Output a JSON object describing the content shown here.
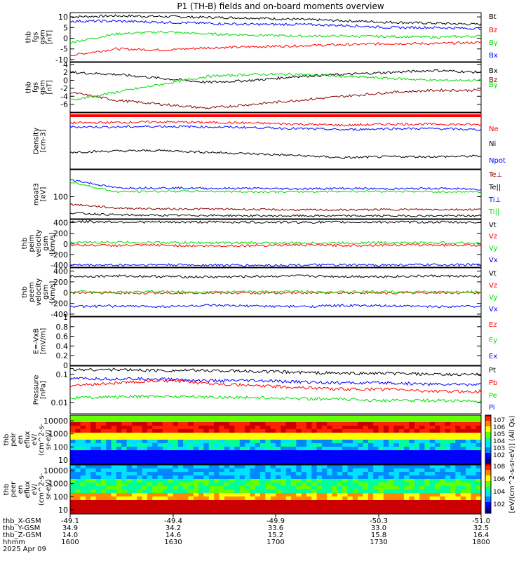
{
  "title": "P1 (TH-B) fields and on-board moments overview",
  "colors": {
    "black": "#000000",
    "red": "#ff0000",
    "green": "#00dd00",
    "blue": "#0000ff",
    "darkred": "#8b0000"
  },
  "chart_data": {
    "type": "line",
    "x_range": [
      "1600",
      "1800"
    ],
    "panels": [
      {
        "key": "fgs",
        "ylabel": [
          "thb",
          "fgs",
          "gsm",
          "[nT]"
        ],
        "ylim": [
          -11,
          12
        ],
        "yticks": [
          10,
          5,
          0,
          -5,
          -10
        ],
        "series": [
          {
            "name": "Bt",
            "color": "#000000",
            "values": [
              10,
              10.5,
              10.2,
              9.8,
              9.5,
              8.8,
              8.2,
              7.5,
              7,
              6.5
            ]
          },
          {
            "name": "Bz",
            "color": "#ff0000",
            "values": [
              -8,
              -5,
              -5.5,
              -4.5,
              -4,
              -3.5,
              -3,
              -2.5,
              -2.5,
              -2
            ]
          },
          {
            "name": "By",
            "color": "#00dd00",
            "values": [
              -2,
              2,
              3,
              2,
              1.5,
              1,
              1,
              0.8,
              0.5,
              1
            ]
          },
          {
            "name": "Bx",
            "color": "#0000ff",
            "values": [
              8,
              8,
              7.5,
              7,
              6.5,
              6.5,
              6,
              5,
              5,
              4.5
            ]
          }
        ]
      },
      {
        "key": "fgs_sm",
        "ylabel": [
          "thb",
          "fgs",
          "gsm",
          "[nT]"
        ],
        "ylim": [
          -8,
          4.5
        ],
        "yticks": [
          4,
          2,
          0,
          -2,
          -4,
          -6
        ],
        "series": [
          {
            "name": "Bx",
            "color": "#000000",
            "values": [
              2,
              1.5,
              0.5,
              -0.5,
              0,
              1,
              1.5,
              2,
              2.5,
              2
            ]
          },
          {
            "name": "Bz",
            "color": "#8b0000",
            "values": [
              -3,
              -5,
              -6,
              -7,
              -6,
              -5,
              -4,
              -3,
              -2.5,
              -2.5
            ]
          },
          {
            "name": "By",
            "color": "#00dd00",
            "values": [
              -5,
              -3,
              -1,
              1,
              1.5,
              1.5,
              1,
              0.5,
              0,
              0
            ]
          }
        ]
      },
      {
        "key": "density",
        "ylabel": [
          "Density",
          "[cm-3]"
        ],
        "ylim": [
          0,
          1
        ],
        "yticks": [],
        "series": [
          {
            "name": "Ne",
            "color": "#ff0000",
            "values": [
              0.82,
              0.83,
              0.84,
              0.83,
              0.82,
              0.8,
              0.78,
              0.8,
              0.8,
              0.79
            ]
          },
          {
            "name": "Ni",
            "color": "#000000",
            "values": [
              0.3,
              0.32,
              0.33,
              0.3,
              0.27,
              0.24,
              0.2,
              0.22,
              0.22,
              0.23
            ]
          },
          {
            "name": "Npot",
            "color": "#0000ff",
            "values": [
              0.75,
              0.75,
              0.76,
              0.75,
              0.74,
              0.72,
              0.7,
              0.72,
              0.72,
              0.7
            ]
          }
        ]
      },
      {
        "key": "temp",
        "ylabel": [
          "moat3",
          "[eV]"
        ],
        "ylim": [
          0,
          1
        ],
        "yticks": [
          100
        ],
        "series": [
          {
            "name": "Te⊥",
            "color": "#8b0000",
            "values": [
              0.3,
              0.22,
              0.2,
              0.2,
              0.19,
              0.18,
              0.18,
              0.19,
              0.19,
              0.19
            ]
          },
          {
            "name": "Te||",
            "color": "#000000",
            "values": [
              0.12,
              0.08,
              0.07,
              0.07,
              0.06,
              0.06,
              0.06,
              0.06,
              0.06,
              0.06
            ]
          },
          {
            "name": "Ti⊥",
            "color": "#0000ff",
            "values": [
              0.8,
              0.63,
              0.63,
              0.62,
              0.62,
              0.61,
              0.62,
              0.61,
              0.62,
              0.6
            ]
          },
          {
            "name": "Ti||",
            "color": "#00dd00",
            "values": [
              0.75,
              0.55,
              0.56,
              0.56,
              0.55,
              0.55,
              0.56,
              0.56,
              0.55,
              0.55
            ]
          }
        ]
      },
      {
        "key": "peim",
        "ylabel": [
          "thb",
          "peim",
          "velocity",
          "gsm",
          "[km/s]"
        ],
        "ylim": [
          -440,
          460
        ],
        "yticks": [
          400,
          200,
          0,
          -200,
          -400
        ],
        "series": [
          {
            "name": "Vt",
            "color": "#000000",
            "values": [
              420,
              415,
              410,
              412,
              410,
              408,
              410,
              412,
              410,
              405
            ]
          },
          {
            "name": "Vz",
            "color": "#ff0000",
            "values": [
              -20,
              -30,
              -25,
              -40,
              -30,
              -20,
              -30,
              -20,
              -20,
              -25
            ]
          },
          {
            "name": "Vy",
            "color": "#00dd00",
            "values": [
              20,
              30,
              25,
              20,
              20,
              15,
              20,
              25,
              20,
              15
            ]
          },
          {
            "name": "Vx",
            "color": "#0000ff",
            "values": [
              -400,
              -400,
              -395,
              -400,
              -405,
              -400,
              -400,
              -398,
              -395,
              -395
            ]
          }
        ]
      },
      {
        "key": "peem",
        "ylabel": [
          "thb",
          "peem",
          "velocity",
          "gsm",
          "[km/s]"
        ],
        "ylim": [
          -440,
          460
        ],
        "yticks": [
          400,
          200,
          0,
          -200,
          -400
        ],
        "series": [
          {
            "name": "Vt",
            "color": "#000000",
            "values": [
              300,
              310,
              300,
              290,
              300,
              310,
              300,
              300,
              310,
              300
            ]
          },
          {
            "name": "Vz",
            "color": "#ff0000",
            "values": [
              0,
              -10,
              -5,
              0,
              -10,
              -5,
              0,
              -10,
              0,
              -5
            ]
          },
          {
            "name": "Vy",
            "color": "#00dd00",
            "values": [
              20,
              10,
              20,
              10,
              15,
              20,
              10,
              20,
              10,
              15
            ]
          },
          {
            "name": "Vx",
            "color": "#0000ff",
            "values": [
              -260,
              -250,
              -260,
              -240,
              -250,
              -260,
              -240,
              -250,
              -260,
              -250
            ]
          }
        ]
      },
      {
        "key": "efield",
        "ylabel": [
          "E=-VxB",
          "[mV/m]"
        ],
        "ylim": [
          0,
          1
        ],
        "yticks": [
          1.0,
          0.8,
          0.6,
          0.4,
          0.2,
          0.0
        ],
        "series": [
          {
            "name": "Ez",
            "color": "#ff0000",
            "values": []
          },
          {
            "name": "Ey",
            "color": "#00dd00",
            "values": []
          },
          {
            "name": "Ex",
            "color": "#0000ff",
            "values": []
          }
        ]
      },
      {
        "key": "pressure",
        "ylabel": [
          "Pressure",
          "[nPa]"
        ],
        "ylim": [
          0.004,
          0.2
        ],
        "yticks": [
          0.1,
          0.01
        ],
        "series": [
          {
            "name": "Pt",
            "color": "#000000",
            "values": [
              0.15,
              0.15,
              0.14,
              0.14,
              0.13,
              0.12,
              0.11,
              0.11,
              0.1,
              0.1
            ]
          },
          {
            "name": "Pb",
            "color": "#ff0000",
            "values": [
              0.04,
              0.05,
              0.06,
              0.05,
              0.04,
              0.035,
              0.03,
              0.03,
              0.025,
              0.025
            ]
          },
          {
            "name": "Pe",
            "color": "#00dd00",
            "values": [
              0.015,
              0.016,
              0.017,
              0.016,
              0.015,
              0.014,
              0.013,
              0.012,
              0.012,
              0.011
            ]
          },
          {
            "name": "Pi",
            "color": "#0000ff",
            "values": [
              0.07,
              0.07,
              0.07,
              0.06,
              0.06,
              0.055,
              0.05,
              0.05,
              0.045,
              0.045
            ]
          }
        ]
      }
    ],
    "spectrograms": [
      {
        "key": "peir",
        "ylabel": [
          "thb",
          "peir",
          "en",
          "eflux",
          "eV/",
          "(cm^2-s-",
          "sr-eV)"
        ],
        "yticks": [
          "10000",
          "1000",
          "100",
          "10"
        ]
      },
      {
        "key": "peer",
        "ylabel": [
          "thb",
          "peer",
          "en",
          "eflux",
          "eV/",
          "(cm^2-s-",
          "sr-eV)"
        ],
        "yticks": [
          "10000",
          "1000",
          "100",
          "10"
        ]
      }
    ],
    "colorbar": {
      "upper_ticks": [
        "10^7",
        "10^6",
        "10^5",
        "10^4",
        "10^3",
        "10^2"
      ],
      "lower_ticks": [
        "10^8",
        "10^6",
        "10^4",
        "10^2"
      ],
      "label": "[eV/(cm^2-s-sr-eV)] (All Qs)"
    },
    "xaxis_rows": [
      {
        "label": "thb_X-GSM",
        "values": [
          "-49.1",
          "-49.4",
          "-49.9",
          "-50.3",
          "-51.0"
        ]
      },
      {
        "label": "thb_Y-GSM",
        "values": [
          "34.9",
          "34.2",
          "33.6",
          "33.0",
          "32.5"
        ]
      },
      {
        "label": "thb_Z-GSM",
        "values": [
          "14.0",
          "14.6",
          "15.2",
          "15.8",
          "16.4"
        ]
      },
      {
        "label": "hhmm",
        "values": [
          "1600",
          "1630",
          "1700",
          "1730",
          "1800"
        ]
      }
    ],
    "date_label": "2025 Apr 09"
  }
}
